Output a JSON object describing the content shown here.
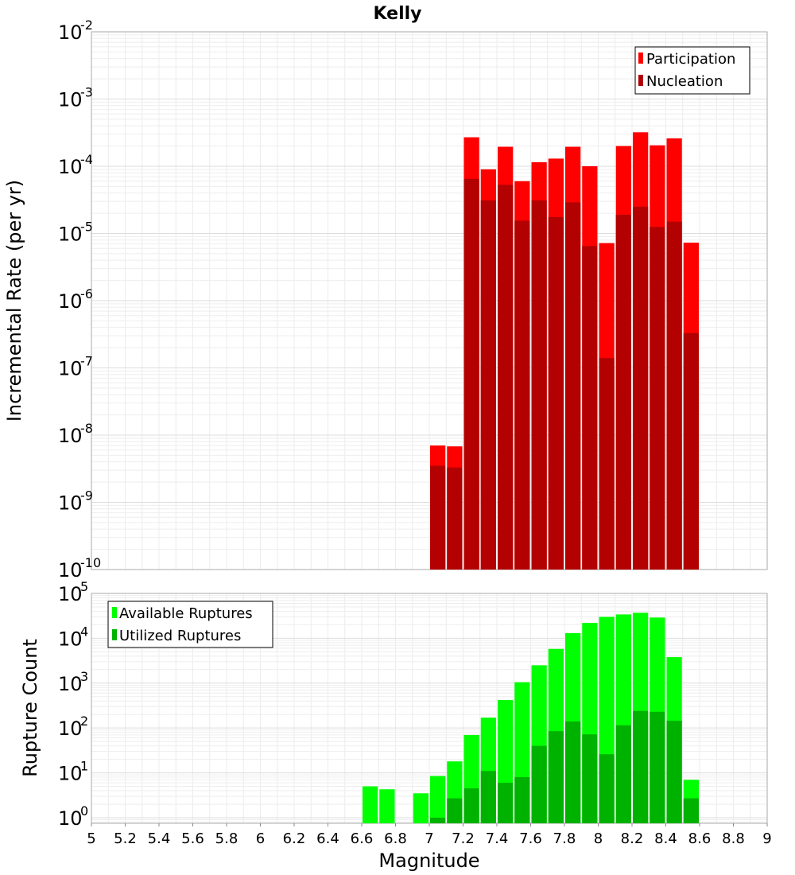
{
  "chart_data": [
    {
      "type": "bar",
      "title": "Kelly",
      "xlabel": "",
      "ylabel": "Incremental Rate (per yr)",
      "yscale": "log",
      "ylim": [
        1e-10,
        0.01
      ],
      "xlim": [
        5,
        9
      ],
      "y_tick_exponents": [
        -10,
        -9,
        -8,
        -7,
        -6,
        -5,
        -4,
        -3,
        -2
      ],
      "bar_width": 0.1,
      "legend_position": "top-right",
      "grid": true,
      "series": [
        {
          "name": "Participation",
          "color": "#ff0000",
          "x": [
            7.05,
            7.15,
            7.25,
            7.35,
            7.45,
            7.55,
            7.65,
            7.75,
            7.85,
            7.95,
            8.05,
            8.15,
            8.25,
            8.35,
            8.45,
            8.55
          ],
          "values": [
            7e-09,
            6.8e-09,
            0.00027,
            9e-05,
            0.000195,
            6e-05,
            0.000115,
            0.00013,
            0.000195,
            0.0001,
            7.2e-06,
            0.0002,
            0.00032,
            0.000205,
            0.00026,
            7.3e-06
          ]
        },
        {
          "name": "Nucleation",
          "color": "#b30000",
          "x": [
            7.05,
            7.15,
            7.25,
            7.35,
            7.45,
            7.55,
            7.65,
            7.75,
            7.85,
            7.95,
            8.05,
            8.15,
            8.25,
            8.35,
            8.45,
            8.55
          ],
          "values": [
            3.5e-09,
            3.3e-09,
            6.5e-05,
            3.1e-05,
            5.3e-05,
            1.55e-05,
            3.1e-05,
            1.75e-05,
            2.9e-05,
            6.5e-06,
            1.4e-07,
            1.9e-05,
            2.5e-05,
            1.25e-05,
            1.5e-05,
            3.3e-07
          ]
        }
      ]
    },
    {
      "type": "bar",
      "title": "",
      "xlabel": "Magnitude",
      "ylabel": "Rupture Count",
      "yscale": "log",
      "ylim": [
        0.75,
        100000.0
      ],
      "xlim": [
        5,
        9
      ],
      "y_tick_exponents": [
        0,
        1,
        2,
        3,
        4,
        5
      ],
      "x_ticks": [
        "5",
        "5.2",
        "5.4",
        "5.6",
        "5.8",
        "6",
        "6.2",
        "6.4",
        "6.6",
        "6.8",
        "7",
        "7.2",
        "7.4",
        "7.6",
        "7.8",
        "8",
        "8.2",
        "8.4",
        "8.6",
        "8.8",
        "9"
      ],
      "bar_width": 0.1,
      "legend_position": "top-left",
      "grid": true,
      "series": [
        {
          "name": "Available Ruptures",
          "color": "#00ff00",
          "x": [
            6.65,
            6.75,
            6.95,
            7.05,
            7.15,
            7.25,
            7.35,
            7.45,
            7.55,
            7.65,
            7.75,
            7.85,
            7.95,
            8.05,
            8.15,
            8.25,
            8.35,
            8.45,
            8.55
          ],
          "values": [
            5,
            4.3,
            3.5,
            8.5,
            18,
            70,
            170,
            420,
            1050,
            2500,
            5800,
            13000,
            22000,
            30000,
            34000,
            37000,
            29000,
            3800,
            7
          ]
        },
        {
          "name": "Utilized Ruptures",
          "color": "#00b200",
          "x": [
            7.05,
            7.15,
            7.25,
            7.35,
            7.45,
            7.55,
            7.65,
            7.75,
            7.85,
            7.95,
            8.05,
            8.15,
            8.25,
            8.35,
            8.45,
            8.55
          ],
          "values": [
            1,
            2.7,
            4.5,
            11,
            6,
            8,
            40,
            85,
            140,
            72,
            26,
            115,
            240,
            230,
            145,
            2.7
          ]
        }
      ]
    }
  ]
}
